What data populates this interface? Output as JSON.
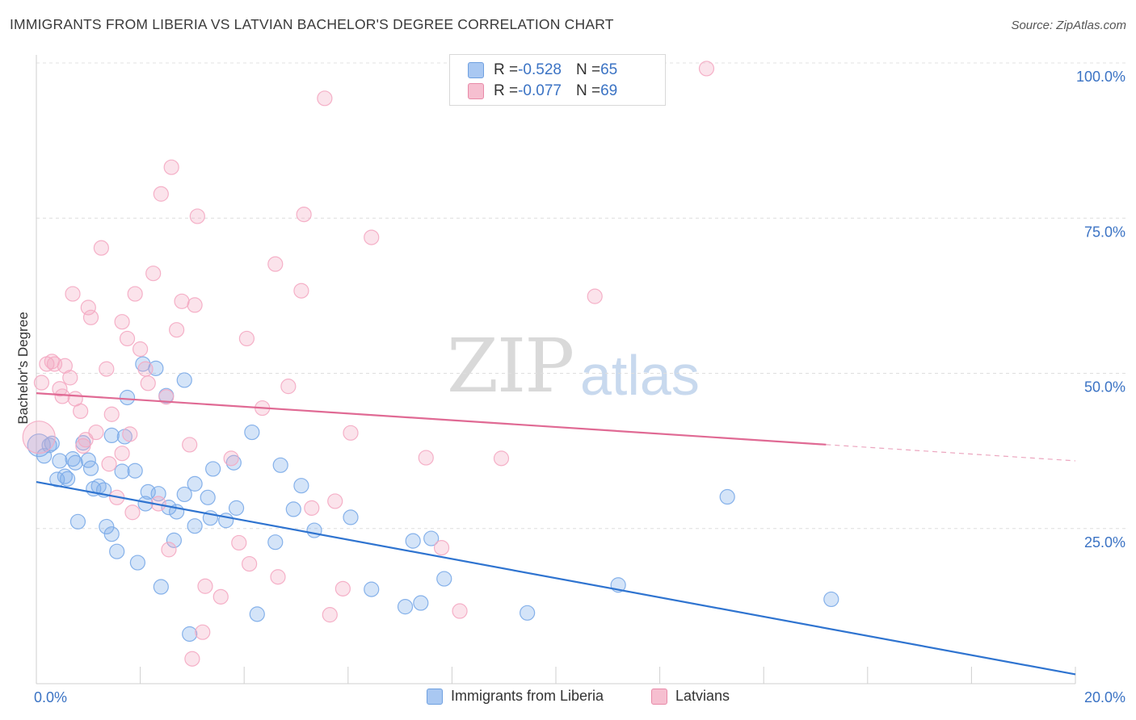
{
  "title": "IMMIGRANTS FROM LIBERIA VS LATVIAN BACHELOR'S DEGREE CORRELATION CHART",
  "source": "Source: ZipAtlas.com",
  "watermark": {
    "zip": "ZIP",
    "atlas": "atlas"
  },
  "legend": {
    "rows": [
      {
        "r_label": "R = ",
        "r_value": "-0.528",
        "n_label": "N = ",
        "n_value": "65",
        "color": "#a9c8f2",
        "border": "#6fa0e0"
      },
      {
        "r_label": "R = ",
        "r_value": "-0.077",
        "n_label": "N = ",
        "n_value": "69",
        "color": "#f6bfd0",
        "border": "#e88aa8"
      }
    ]
  },
  "bottom_legend": [
    {
      "label": "Immigrants from Liberia",
      "color": "#a9c8f2",
      "border": "#6fa0e0"
    },
    {
      "label": "Latvians",
      "color": "#f6bfd0",
      "border": "#e88aa8"
    }
  ],
  "chart_data": {
    "type": "scatter",
    "ylabel": "Bachelor's Degree",
    "xlabel": "",
    "xlim": [
      0,
      20
    ],
    "ylim": [
      0,
      100
    ],
    "x_tick_labels": [
      {
        "value": 0,
        "label": "0.0%"
      },
      {
        "value": 20,
        "label": "20.0%"
      }
    ],
    "y_tick_labels": [
      {
        "value": 25,
        "label": "25.0%"
      },
      {
        "value": 50,
        "label": "50.0%"
      },
      {
        "value": 75,
        "label": "75.0%"
      },
      {
        "value": 100,
        "label": "100.0%"
      }
    ],
    "grid": true,
    "series": [
      {
        "name": "Immigrants from Liberia",
        "color": "#7aaae8",
        "line_color": "#2f74d0",
        "trend": {
          "x": [
            0,
            20
          ],
          "y": [
            32.5,
            1.5
          ],
          "solid_to": 20
        },
        "points": [
          [
            0.15,
            36.7
          ],
          [
            0.25,
            38.4
          ],
          [
            0.3,
            38.7
          ],
          [
            0.4,
            32.9
          ],
          [
            0.45,
            35.9
          ],
          [
            0.55,
            33.4
          ],
          [
            0.6,
            33.0
          ],
          [
            0.7,
            36.2
          ],
          [
            0.75,
            35.6
          ],
          [
            0.8,
            26.1
          ],
          [
            0.9,
            38.8
          ],
          [
            1.0,
            36.0
          ],
          [
            1.05,
            34.7
          ],
          [
            1.1,
            31.4
          ],
          [
            1.2,
            31.8
          ],
          [
            1.3,
            31.2
          ],
          [
            1.35,
            25.3
          ],
          [
            1.45,
            24.1
          ],
          [
            1.45,
            40.0
          ],
          [
            1.55,
            21.3
          ],
          [
            1.65,
            34.2
          ],
          [
            1.7,
            39.8
          ],
          [
            1.75,
            46.1
          ],
          [
            1.9,
            34.3
          ],
          [
            1.95,
            19.5
          ],
          [
            2.05,
            51.5
          ],
          [
            2.1,
            29.0
          ],
          [
            2.15,
            30.9
          ],
          [
            2.3,
            50.8
          ],
          [
            2.35,
            30.6
          ],
          [
            2.4,
            15.6
          ],
          [
            2.5,
            46.4
          ],
          [
            2.55,
            28.4
          ],
          [
            2.65,
            23.1
          ],
          [
            2.7,
            27.7
          ],
          [
            2.85,
            30.5
          ],
          [
            2.85,
            48.9
          ],
          [
            2.95,
            8.0
          ],
          [
            3.05,
            32.2
          ],
          [
            3.05,
            25.4
          ],
          [
            3.3,
            30.0
          ],
          [
            3.35,
            26.7
          ],
          [
            3.4,
            34.6
          ],
          [
            3.65,
            26.3
          ],
          [
            3.8,
            35.6
          ],
          [
            3.85,
            28.3
          ],
          [
            4.15,
            40.5
          ],
          [
            4.25,
            11.2
          ],
          [
            4.6,
            22.8
          ],
          [
            4.7,
            35.2
          ],
          [
            4.95,
            28.1
          ],
          [
            5.1,
            31.9
          ],
          [
            5.35,
            24.7
          ],
          [
            6.05,
            26.8
          ],
          [
            6.45,
            15.2
          ],
          [
            7.1,
            12.4
          ],
          [
            7.25,
            23.0
          ],
          [
            7.4,
            13.0
          ],
          [
            7.6,
            23.4
          ],
          [
            7.85,
            16.9
          ],
          [
            9.45,
            11.4
          ],
          [
            11.2,
            15.9
          ],
          [
            13.3,
            30.1
          ],
          [
            15.3,
            13.6
          ],
          [
            0.05,
            38.4
          ]
        ]
      },
      {
        "name": "Latvians",
        "color": "#f4a9c2",
        "line_color": "#e06a94",
        "trend": {
          "x": [
            0,
            20
          ],
          "y": [
            46.8,
            35.9
          ],
          "solid_to": 15.2
        },
        "points": [
          [
            0.05,
            39.7
          ],
          [
            0.1,
            48.5
          ],
          [
            0.2,
            51.5
          ],
          [
            0.3,
            51.9
          ],
          [
            0.35,
            51.5
          ],
          [
            0.45,
            47.5
          ],
          [
            0.5,
            46.3
          ],
          [
            0.55,
            51.2
          ],
          [
            0.65,
            49.3
          ],
          [
            0.7,
            62.8
          ],
          [
            0.75,
            45.9
          ],
          [
            0.85,
            43.9
          ],
          [
            0.9,
            38.3
          ],
          [
            0.95,
            39.3
          ],
          [
            1.0,
            60.6
          ],
          [
            1.05,
            59.0
          ],
          [
            1.15,
            40.5
          ],
          [
            1.25,
            70.2
          ],
          [
            1.35,
            50.7
          ],
          [
            1.4,
            35.4
          ],
          [
            1.45,
            43.4
          ],
          [
            1.55,
            30.0
          ],
          [
            1.65,
            37.1
          ],
          [
            1.65,
            58.3
          ],
          [
            1.75,
            55.6
          ],
          [
            1.8,
            40.2
          ],
          [
            1.85,
            27.6
          ],
          [
            1.9,
            62.8
          ],
          [
            2.0,
            53.9
          ],
          [
            2.1,
            50.7
          ],
          [
            2.15,
            48.4
          ],
          [
            2.25,
            66.1
          ],
          [
            2.35,
            29.0
          ],
          [
            2.4,
            78.9
          ],
          [
            2.5,
            46.2
          ],
          [
            2.55,
            21.6
          ],
          [
            2.6,
            83.2
          ],
          [
            2.7,
            57.0
          ],
          [
            2.8,
            61.6
          ],
          [
            2.95,
            38.5
          ],
          [
            3.0,
            4.0
          ],
          [
            3.05,
            61.0
          ],
          [
            3.1,
            75.3
          ],
          [
            3.2,
            8.3
          ],
          [
            3.25,
            15.7
          ],
          [
            3.55,
            14.0
          ],
          [
            3.75,
            36.3
          ],
          [
            3.9,
            22.7
          ],
          [
            4.05,
            55.6
          ],
          [
            4.1,
            19.3
          ],
          [
            4.35,
            44.4
          ],
          [
            4.6,
            67.6
          ],
          [
            4.65,
            17.2
          ],
          [
            4.85,
            47.9
          ],
          [
            5.1,
            63.3
          ],
          [
            5.15,
            75.6
          ],
          [
            5.3,
            28.3
          ],
          [
            5.55,
            94.3
          ],
          [
            5.65,
            11.1
          ],
          [
            5.75,
            29.4
          ],
          [
            5.9,
            15.3
          ],
          [
            6.05,
            40.4
          ],
          [
            6.45,
            71.9
          ],
          [
            7.5,
            36.4
          ],
          [
            7.8,
            21.9
          ],
          [
            8.15,
            11.7
          ],
          [
            8.95,
            36.3
          ],
          [
            10.75,
            62.4
          ],
          [
            12.9,
            99.1
          ]
        ]
      }
    ]
  }
}
